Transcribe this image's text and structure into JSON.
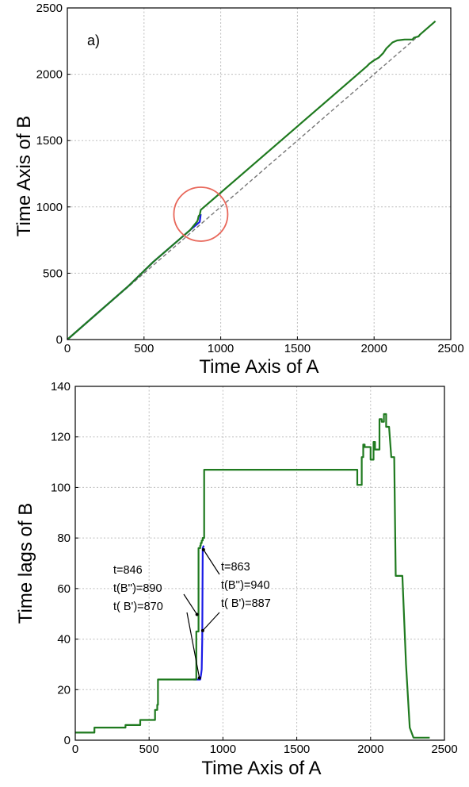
{
  "colors": {
    "green": "#1f7a1f",
    "blue": "#1b1be6",
    "diagonal": "#777777",
    "circle": "#e8675a"
  },
  "chart_data": [
    {
      "type": "line",
      "panel_label": "a)",
      "xlabel": "Time Axis of A",
      "ylabel": "Time Axis of B",
      "xlim": [
        0,
        2500
      ],
      "ylim": [
        0,
        2500
      ],
      "xticks": [
        "0",
        "500",
        "1000",
        "1500",
        "2000",
        "2500"
      ],
      "yticks": [
        "0",
        "500",
        "1000",
        "1500",
        "2000",
        "2500"
      ],
      "grid": true,
      "highlight": {
        "shape": "circle",
        "center": [
          870,
          945
        ],
        "note": "red circle around the jump"
      },
      "series": [
        {
          "style": "dashed",
          "color": "diagonal",
          "x": [
            0,
            2400
          ],
          "y": [
            0,
            2400
          ]
        },
        {
          "style": "solid",
          "color": "blue",
          "x": [
            0,
            400,
            560,
            800,
            846,
            863,
            870
          ],
          "y": [
            0,
            405,
            585,
            825,
            870,
            887,
            945
          ]
        },
        {
          "style": "solid",
          "color": "green",
          "x": [
            0,
            400,
            560,
            700,
            800,
            846,
            850,
            856,
            863,
            870,
            1500,
            1950,
            1970,
            2000,
            2030,
            2060,
            2080,
            2120,
            2150,
            2200,
            2250,
            2260,
            2290,
            2300,
            2400
          ],
          "y": [
            0,
            405,
            585,
            725,
            825,
            890,
            900,
            930,
            940,
            977,
            1607,
            2057,
            2080,
            2105,
            2125,
            2160,
            2195,
            2240,
            2255,
            2262,
            2262,
            2275,
            2285,
            2300,
            2400
          ]
        }
      ]
    },
    {
      "type": "line",
      "xlabel": "Time Axis of A",
      "ylabel": "Time lags of B",
      "xlim": [
        0,
        2500
      ],
      "ylim": [
        0,
        140
      ],
      "xticks": [
        "0",
        "500",
        "1000",
        "1500",
        "2000",
        "2500"
      ],
      "yticks": [
        "0",
        "20",
        "40",
        "60",
        "80",
        "100",
        "120",
        "140"
      ],
      "grid": true,
      "annotations": [
        {
          "lines": [
            "t=846",
            "t(B'')=890",
            "t( B')=870"
          ],
          "target": [
            846,
            24
          ]
        },
        {
          "lines": [
            "t=863",
            "t(B'')=940",
            "t( B')=887"
          ],
          "target": [
            863,
            76
          ]
        }
      ],
      "series": [
        {
          "style": "solid",
          "color": "blue",
          "x": [
            800,
            840,
            846,
            852,
            856,
            860,
            863,
            870
          ],
          "y": [
            24,
            24,
            24,
            26,
            28,
            40,
            76,
            77
          ]
        },
        {
          "style": "solid",
          "color": "green",
          "x": [
            0,
            130,
            130,
            340,
            340,
            440,
            440,
            540,
            540,
            555,
            555,
            560,
            560,
            800,
            800,
            820,
            820,
            835,
            835,
            846,
            846,
            850,
            850,
            856,
            856,
            863,
            863,
            873,
            873,
            1910,
            1910,
            1940,
            1940,
            1950,
            1950,
            1960,
            1960,
            2000,
            2000,
            2020,
            2020,
            2030,
            2030,
            2060,
            2060,
            2075,
            2075,
            2090,
            2090,
            2105,
            2105,
            2125,
            2140,
            2160,
            2170,
            2200,
            2215,
            2240,
            2265,
            2290,
            2290,
            2400
          ],
          "y": [
            3,
            3,
            5,
            5,
            6,
            6,
            8,
            8,
            12,
            12,
            14,
            14,
            24,
            24,
            24,
            24,
            43,
            43,
            76,
            76,
            77,
            77,
            78,
            78,
            79,
            79,
            80,
            80,
            107,
            107,
            101,
            101,
            112,
            112,
            117,
            117,
            116,
            116,
            111,
            111,
            118,
            118,
            115,
            115,
            127,
            127,
            126,
            126,
            129,
            129,
            124,
            124,
            112,
            112,
            65,
            65,
            65,
            30,
            5,
            1,
            1,
            1
          ]
        }
      ]
    }
  ]
}
